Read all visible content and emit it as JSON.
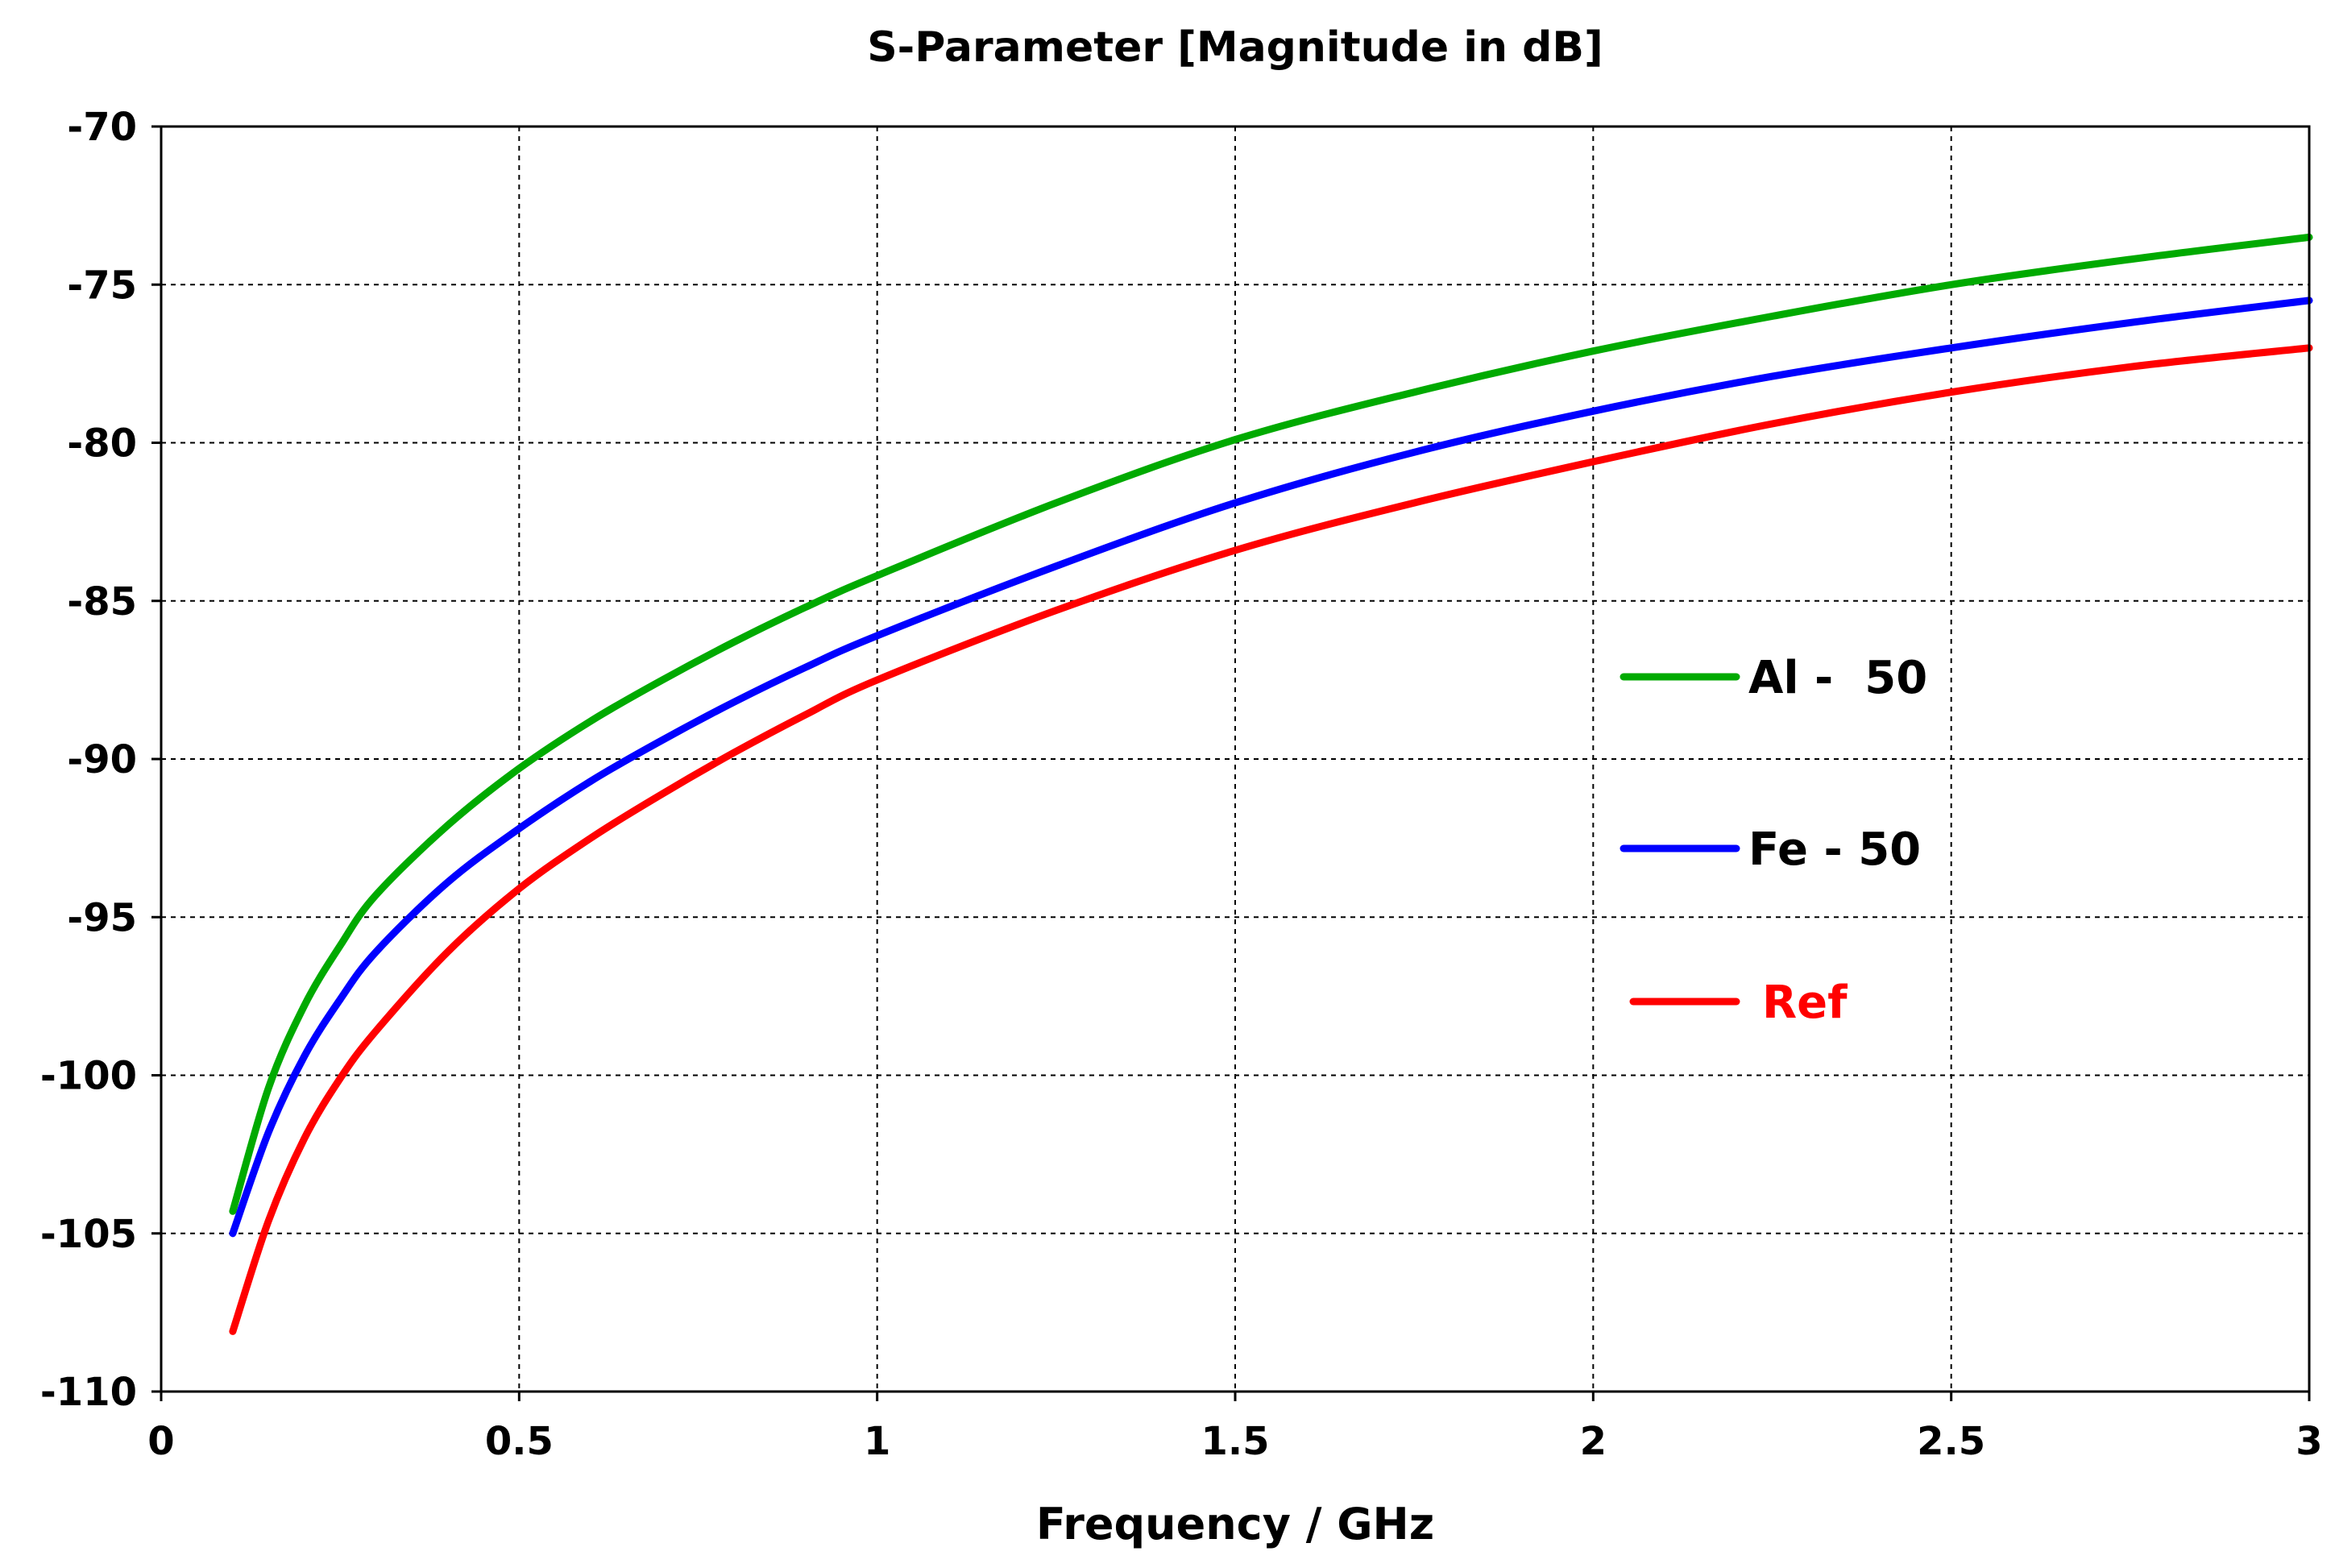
{
  "chart_data": {
    "type": "line",
    "title": "S-Parameter [Magnitude in dB]",
    "xlabel": "Frequency / GHz",
    "ylabel": "",
    "xlim": [
      0,
      3
    ],
    "ylim": [
      -110,
      -70
    ],
    "xticks": [
      0,
      0.5,
      1,
      1.5,
      2,
      2.5,
      3
    ],
    "xtick_labels": [
      "0",
      "0.5",
      "1",
      "1.5",
      "2",
      "2.5",
      "3"
    ],
    "yticks": [
      -70,
      -75,
      -80,
      -85,
      -90,
      -95,
      -100,
      -105,
      -110
    ],
    "ytick_labels": [
      "-70",
      "-75",
      "-80",
      "-85",
      "-90",
      "-95",
      "-100",
      "-105",
      "-110"
    ],
    "grid": true,
    "legend_position": "center-right",
    "series": [
      {
        "name": "Al -  50",
        "color": "#00aa00",
        "x": [
          0.1,
          0.15,
          0.2,
          0.25,
          0.3,
          0.4,
          0.5,
          0.6,
          0.7,
          0.8,
          0.9,
          1.0,
          1.25,
          1.5,
          1.75,
          2.0,
          2.25,
          2.5,
          2.75,
          3.0
        ],
        "y": [
          -104.3,
          -100.4,
          -97.8,
          -95.9,
          -94.3,
          -92.1,
          -90.3,
          -88.8,
          -87.5,
          -86.3,
          -85.2,
          -84.2,
          -81.9,
          -79.9,
          -78.4,
          -77.1,
          -76.0,
          -75.0,
          -74.2,
          -73.5
        ]
      },
      {
        "name": "Fe - 50",
        "color": "#0000ff",
        "x": [
          0.1,
          0.15,
          0.2,
          0.25,
          0.3,
          0.4,
          0.5,
          0.6,
          0.7,
          0.8,
          0.9,
          1.0,
          1.25,
          1.5,
          1.75,
          2.0,
          2.25,
          2.5,
          2.75,
          3.0
        ],
        "y": [
          -105.0,
          -101.8,
          -99.4,
          -97.6,
          -96.1,
          -93.9,
          -92.2,
          -90.7,
          -89.4,
          -88.2,
          -87.1,
          -86.1,
          -83.9,
          -81.9,
          -80.3,
          -79.0,
          -77.9,
          -77.0,
          -76.2,
          -75.5
        ]
      },
      {
        "name": "Ref",
        "color": "#ff0000",
        "x": [
          0.1,
          0.15,
          0.2,
          0.25,
          0.3,
          0.4,
          0.5,
          0.6,
          0.7,
          0.8,
          0.9,
          1.0,
          1.25,
          1.5,
          1.75,
          2.0,
          2.25,
          2.5,
          2.75,
          3.0
        ],
        "y": [
          -108.1,
          -104.6,
          -102.0,
          -100.1,
          -98.6,
          -96.1,
          -94.1,
          -92.5,
          -91.1,
          -89.8,
          -88.6,
          -87.5,
          -85.3,
          -83.4,
          -81.9,
          -80.6,
          -79.4,
          -78.4,
          -77.6,
          -77.0
        ]
      }
    ]
  }
}
